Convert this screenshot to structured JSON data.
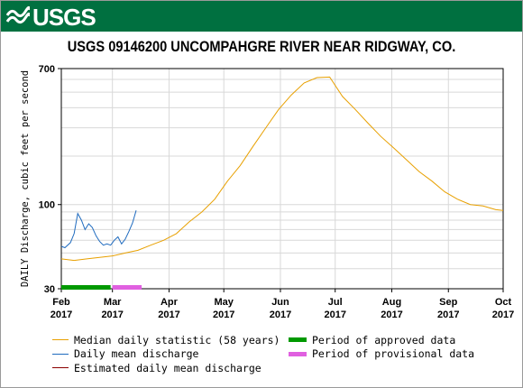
{
  "header": {
    "logo_text": "USGS",
    "logo_icon": "usgs-wave-icon",
    "brand_color": "#007040"
  },
  "chart_data": {
    "type": "line",
    "title": "USGS 09146200 UNCOMPAHGRE RIVER NEAR RIDGWAY, CO.",
    "ylabel": "DAILY Discharge, cubic feet per second",
    "xlabel": "",
    "y_scale": "log",
    "ylim": [
      30,
      700
    ],
    "y_tick_labels": [
      "700",
      "100",
      "30"
    ],
    "xlim": [
      "2017-02-01",
      "2017-10-01"
    ],
    "x_ticks": [
      {
        "date": "2017-02-01",
        "month": "Feb",
        "year": "2017"
      },
      {
        "date": "2017-03-01",
        "month": "Mar",
        "year": "2017"
      },
      {
        "date": "2017-04-01",
        "month": "Apr",
        "year": "2017"
      },
      {
        "date": "2017-05-01",
        "month": "May",
        "year": "2017"
      },
      {
        "date": "2017-06-01",
        "month": "Jun",
        "year": "2017"
      },
      {
        "date": "2017-07-01",
        "month": "Jul",
        "year": "2017"
      },
      {
        "date": "2017-08-01",
        "month": "Aug",
        "year": "2017"
      },
      {
        "date": "2017-09-01",
        "month": "Sep",
        "year": "2017"
      },
      {
        "date": "2017-10-01",
        "month": "Oct",
        "year": "2017"
      }
    ],
    "grid": true,
    "series": [
      {
        "name": "Median daily statistic (58 years)",
        "color": "#e8a000",
        "points": [
          [
            "2017-02-01",
            46
          ],
          [
            "2017-02-08",
            45
          ],
          [
            "2017-02-15",
            46
          ],
          [
            "2017-02-22",
            47
          ],
          [
            "2017-03-01",
            48
          ],
          [
            "2017-03-08",
            50
          ],
          [
            "2017-03-15",
            52
          ],
          [
            "2017-03-22",
            56
          ],
          [
            "2017-03-29",
            60
          ],
          [
            "2017-04-05",
            66
          ],
          [
            "2017-04-12",
            78
          ],
          [
            "2017-04-19",
            90
          ],
          [
            "2017-04-26",
            108
          ],
          [
            "2017-05-03",
            140
          ],
          [
            "2017-05-10",
            175
          ],
          [
            "2017-05-17",
            230
          ],
          [
            "2017-05-24",
            300
          ],
          [
            "2017-05-31",
            390
          ],
          [
            "2017-06-07",
            480
          ],
          [
            "2017-06-14",
            570
          ],
          [
            "2017-06-21",
            615
          ],
          [
            "2017-06-28",
            620
          ],
          [
            "2017-07-05",
            470
          ],
          [
            "2017-07-12",
            390
          ],
          [
            "2017-07-19",
            320
          ],
          [
            "2017-07-26",
            265
          ],
          [
            "2017-08-02",
            225
          ],
          [
            "2017-08-09",
            190
          ],
          [
            "2017-08-16",
            160
          ],
          [
            "2017-08-23",
            140
          ],
          [
            "2017-08-30",
            120
          ],
          [
            "2017-09-06",
            108
          ],
          [
            "2017-09-13",
            100
          ],
          [
            "2017-09-20",
            98
          ],
          [
            "2017-09-27",
            93
          ],
          [
            "2017-10-01",
            92
          ]
        ]
      },
      {
        "name": "Daily mean discharge",
        "color": "#1f6bbf",
        "points": [
          [
            "2017-02-01",
            55
          ],
          [
            "2017-02-03",
            54
          ],
          [
            "2017-02-06",
            58
          ],
          [
            "2017-02-08",
            66
          ],
          [
            "2017-02-10",
            88
          ],
          [
            "2017-02-12",
            80
          ],
          [
            "2017-02-14",
            70
          ],
          [
            "2017-02-16",
            76
          ],
          [
            "2017-02-18",
            72
          ],
          [
            "2017-02-20",
            64
          ],
          [
            "2017-02-22",
            59
          ],
          [
            "2017-02-24",
            56
          ],
          [
            "2017-02-26",
            57
          ],
          [
            "2017-02-28",
            56
          ],
          [
            "2017-03-02",
            60
          ],
          [
            "2017-03-04",
            63
          ],
          [
            "2017-03-06",
            57
          ],
          [
            "2017-03-08",
            61
          ],
          [
            "2017-03-10",
            68
          ],
          [
            "2017-03-12",
            77
          ],
          [
            "2017-03-14",
            92
          ]
        ]
      },
      {
        "name": "Estimated daily mean discharge",
        "color": "#8b0000",
        "points": []
      }
    ],
    "periods": [
      {
        "name": "Period of approved data",
        "color": "#009900",
        "start": "2017-02-01",
        "end": "2017-02-28"
      },
      {
        "name": "Period of provisional data",
        "color": "#e060e0",
        "start": "2017-03-01",
        "end": "2017-03-17"
      }
    ]
  },
  "legend": {
    "col1": [
      {
        "label": "Median daily statistic (58 years)",
        "color": "#e8a000",
        "kind": "line"
      },
      {
        "label": "Daily mean discharge",
        "color": "#1f6bbf",
        "kind": "line"
      },
      {
        "label": "Estimated daily mean discharge",
        "color": "#8b0000",
        "kind": "line"
      }
    ],
    "col2": [
      {
        "label": "Period of approved data",
        "color": "#009900",
        "kind": "bar"
      },
      {
        "label": "Period of provisional data",
        "color": "#e060e0",
        "kind": "bar"
      }
    ]
  }
}
